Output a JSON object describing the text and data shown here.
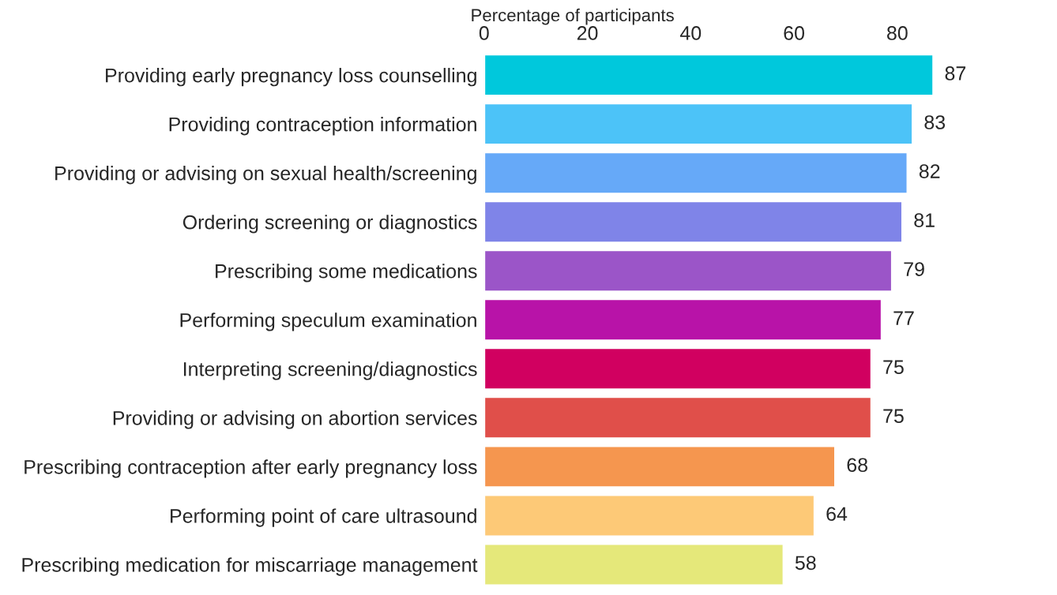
{
  "chart_data": {
    "type": "bar",
    "orientation": "horizontal",
    "xlabel": "Percentage of participants",
    "categories": [
      "Providing early pregnancy loss counselling",
      "Providing contraception information",
      "Providing or advising on sexual health/screening",
      "Ordering screening or diagnostics",
      "Prescribing some medications",
      "Performing speculum examination",
      "Interpreting screening/diagnostics",
      "Providing or advising on abortion services",
      "Prescribing contraception after early pregnancy loss",
      "Performing point of care ultrasound",
      "Prescribing medication for miscarriage management"
    ],
    "values": [
      87,
      83,
      82,
      81,
      79,
      77,
      75,
      75,
      68,
      64,
      58
    ],
    "colors": [
      "#00c8dc",
      "#4cc3f8",
      "#66a9f8",
      "#7f84e8",
      "#9b55c8",
      "#b813a8",
      "#d10060",
      "#e04f4a",
      "#f5964f",
      "#fdc977",
      "#e5e87a"
    ],
    "xlim": [
      0,
      88
    ],
    "xticks": [
      0,
      20,
      40,
      60,
      80
    ],
    "data_labels": true,
    "grid": false,
    "legend": false
  }
}
